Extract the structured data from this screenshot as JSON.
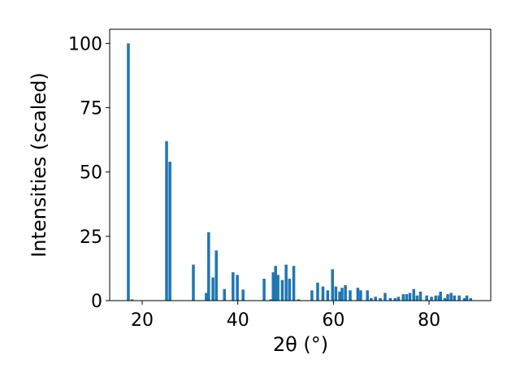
{
  "chart_data": {
    "type": "bar",
    "xlabel": "2θ (°)",
    "ylabel": "Intensities (scaled)",
    "color": "#1f77b4",
    "x": [
      17.1,
      17.9,
      25.1,
      25.8,
      30.7,
      33.4,
      33.9,
      34.8,
      35.5,
      37.2,
      39.0,
      39.9,
      41.1,
      45.5,
      46.9,
      47.4,
      47.9,
      48.4,
      49.3,
      50.1,
      50.8,
      51.7,
      52.7,
      55.5,
      56.7,
      57.8,
      58.8,
      59.8,
      60.5,
      61.3,
      61.8,
      62.5,
      63.5,
      65.1,
      65.7,
      67.1,
      67.9,
      68.8,
      69.8,
      70.8,
      71.9,
      72.9,
      73.6,
      74.6,
      75.3,
      76.0,
      76.8,
      77.5,
      78.2,
      79.5,
      80.5,
      81.4,
      82.1,
      82.4,
      83.3,
      83.9,
      84.6,
      85.3,
      86.3,
      87.4,
      87.9,
      88.7
    ],
    "values": [
      100,
      0.5,
      62,
      54,
      14,
      3,
      26.6,
      9,
      19.5,
      4.5,
      11,
      10,
      4.3,
      8.5,
      0.5,
      11,
      13.5,
      10,
      8,
      14,
      8.5,
      13.5,
      0.5,
      4,
      7,
      5.5,
      4,
      12.2,
      5.5,
      3.5,
      5,
      6,
      4,
      5,
      4,
      4,
      1,
      1.5,
      1,
      3,
      1,
      1,
      1.5,
      2.5,
      2.5,
      3,
      4.5,
      2,
      3.5,
      2,
      1.5,
      2,
      2,
      3.5,
      1,
      2.5,
      3,
      2,
      2,
      1,
      2,
      1
    ],
    "xlim": [
      13.2,
      92.9
    ],
    "ylim": [
      0,
      105.5
    ],
    "xticks": [
      20,
      40,
      60,
      80
    ],
    "yticks": [
      0,
      25,
      50,
      75,
      100
    ]
  }
}
